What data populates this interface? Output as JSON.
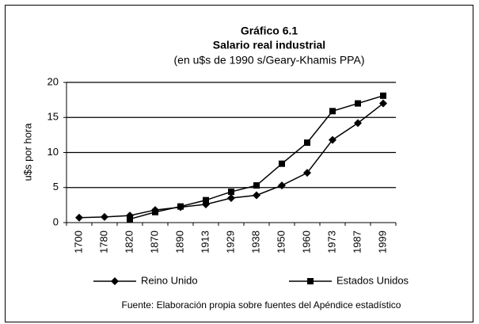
{
  "chart_data": {
    "type": "line",
    "title": "Gráfico 6.1",
    "subtitle": "Salario real industrial",
    "subtitle2": "(en u$s de 1990 s/Geary-Khamis PPA)",
    "y_label": "u$s por hora",
    "source": "Fuente: Elaboración propia sobre fuentes del Apéndice estadístico",
    "categories": [
      "1700",
      "1780",
      "1820",
      "1870",
      "1890",
      "1913",
      "1929",
      "1938",
      "1950",
      "1960",
      "1973",
      "1987",
      "1999"
    ],
    "series": [
      {
        "name": "Reino Unido",
        "color": "#000000",
        "marker": "diamond",
        "values": [
          0.7,
          0.8,
          1.0,
          1.8,
          2.2,
          2.6,
          3.5,
          3.9,
          5.3,
          7.1,
          11.8,
          14.2,
          17.0
        ]
      },
      {
        "name": "Estados Unidos",
        "color": "#000000",
        "marker": "square",
        "values": [
          null,
          null,
          0.5,
          1.5,
          2.3,
          3.2,
          4.4,
          5.3,
          8.4,
          11.4,
          15.9,
          17.0,
          18.1
        ]
      }
    ],
    "ylim": [
      0,
      20
    ],
    "yticks": [
      0,
      5,
      10,
      15,
      20
    ],
    "grid": true,
    "legend": "bottom"
  }
}
